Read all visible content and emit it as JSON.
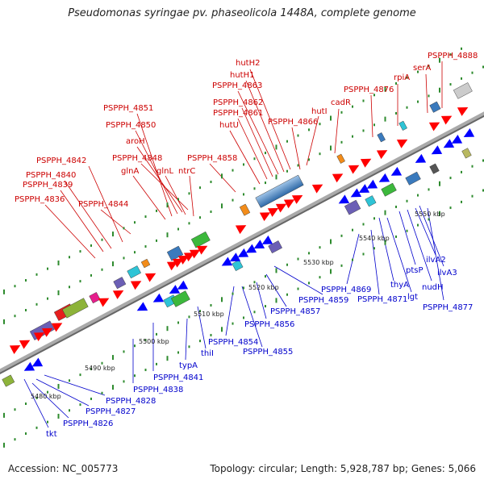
{
  "title": "Pseudomonas syringae pv. phaseolicola 1448A, complete genome",
  "footer": {
    "accession": "Accession: NC_005773",
    "stats": "Topology: circular; Length: 5,928,787 bp; Genes: 5,066"
  },
  "colors": {
    "forward_label": "#cc0000",
    "reverse_label": "#0000cc",
    "forward_arrow": "#ff0000",
    "reverse_arrow": "#0000ff",
    "backbone": "#999999",
    "tick": "#2e8b2e"
  },
  "tick_labels": [
    "5480 kbp",
    "5490 kbp",
    "5500 kbp",
    "5510 kbp",
    "5520 kbp",
    "5530 kbp",
    "5540 kbp",
    "5550 kbp"
  ],
  "forward_genes": [
    "PSPPH_4888",
    "serA",
    "rpiA",
    "PSPPH_4876",
    "cadR",
    "hutI",
    "hutH2",
    "hutH1",
    "PSPPH_4863",
    "PSPPH_4862",
    "PSPPH_4861",
    "PSPPH_4866",
    "hutU",
    "PSPPH_4851",
    "PSPPH_4850",
    "aroH",
    "PSPPH_4848",
    "PSPPH_4858",
    "glnA",
    "glnL",
    "ntrC",
    "PSPPH_4842",
    "PSPPH_4840",
    "PSPPH_4839",
    "PSPPH_4836",
    "PSPPH_4844"
  ],
  "reverse_genes": [
    "tkt",
    "PSPPH_4826",
    "PSPPH_4827",
    "PSPPH_4828",
    "PSPPH_4838",
    "PSPPH_4841",
    "typA",
    "thiI",
    "PSPPH_4854",
    "PSPPH_4855",
    "PSPPH_4856",
    "PSPPH_4857",
    "PSPPH_4859",
    "PSPPH_4869",
    "PSPPH_4871",
    "thyA",
    "lgt",
    "ptsP",
    "nudH",
    "ilvA2",
    "ilvA3",
    "PSPPH_4877"
  ]
}
